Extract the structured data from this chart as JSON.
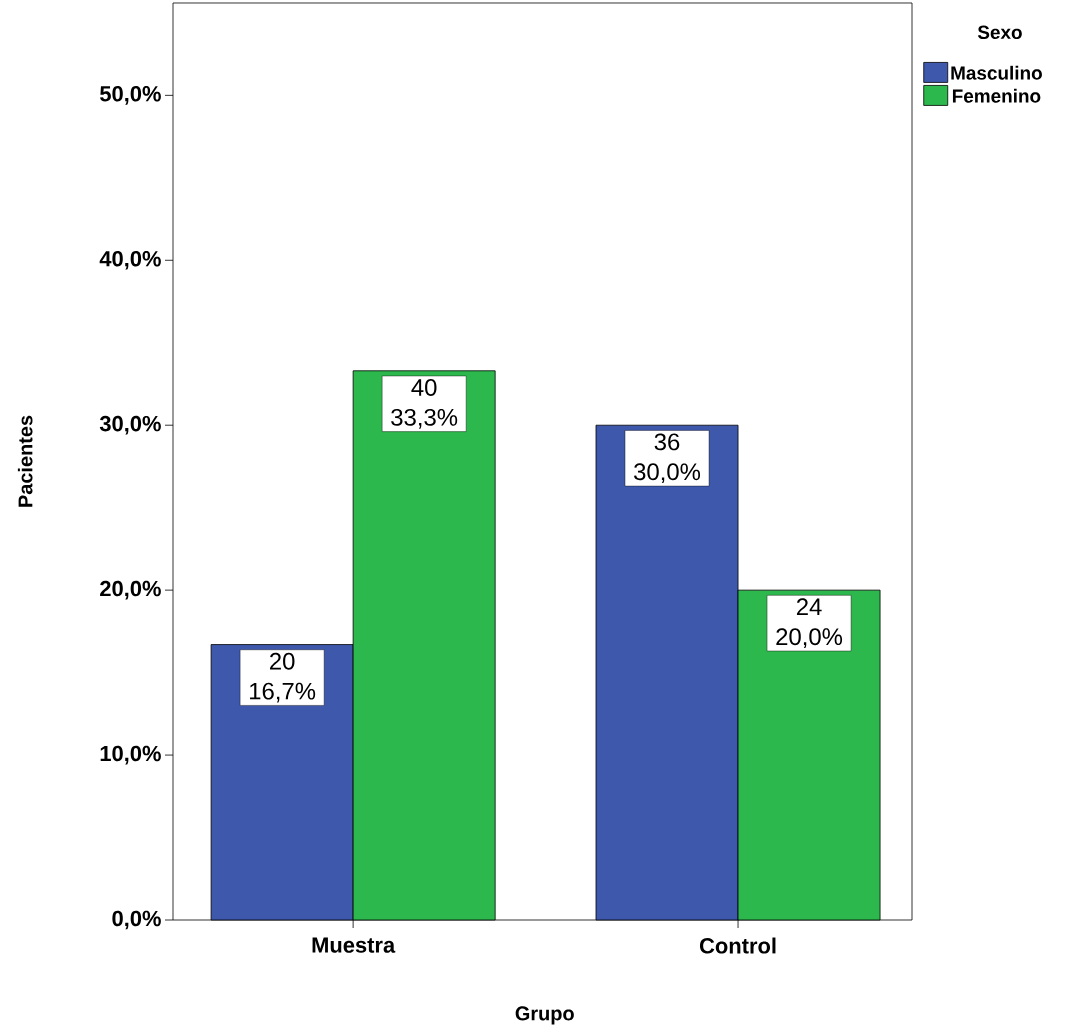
{
  "chart_data": {
    "type": "bar",
    "xlabel": "Grupo",
    "ylabel": "Pacientes",
    "legend_title": "Sexo",
    "categories": [
      "Muestra",
      "Control"
    ],
    "series": [
      {
        "name": "Masculino",
        "color": "#3e58ac",
        "values": [
          16.7,
          30.0
        ],
        "value_labels": [
          "20 16,7%",
          "36 30,0%"
        ]
      },
      {
        "name": "Femenino",
        "color": "#2db84d",
        "values": [
          33.3,
          20.0
        ],
        "value_labels": [
          "40 33,3%",
          "24 20,0%"
        ]
      }
    ],
    "ylim": [
      0,
      55.6
    ],
    "yticks": [
      {
        "value": 0,
        "label": "0,0%"
      },
      {
        "value": 10,
        "label": "10,0%"
      },
      {
        "value": 20,
        "label": "20,0%"
      },
      {
        "value": 30,
        "label": "30,0%"
      },
      {
        "value": 40,
        "label": "40,0%"
      },
      {
        "value": 50,
        "label": "50,0%"
      }
    ],
    "legend": "top right",
    "grid": false
  }
}
